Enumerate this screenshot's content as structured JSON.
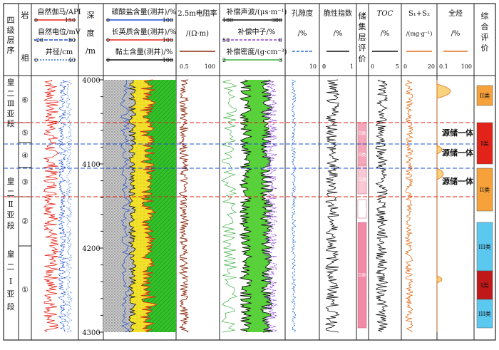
{
  "columns": {
    "stratigraphy": "四级层序",
    "lithofacies": [
      "岩",
      "相"
    ],
    "depth": [
      "深",
      "度",
      "/m"
    ],
    "resistivity": [
      "2.5m电阻率",
      "/(Ω·m)"
    ],
    "porosity": [
      "孔隙度",
      "/%"
    ],
    "brittleness": [
      "脆性指数",
      "/%"
    ],
    "reservoir_eval": "储集层评价",
    "toc": [
      "TOC",
      "/%"
    ],
    "s1s2": [
      "S₁+S₂",
      "/(mg·g⁻¹)"
    ],
    "whole_diameter": [
      "全烃",
      "/%"
    ],
    "overall_eval": "综合评价"
  },
  "curves": {
    "gr": {
      "label": "自然伽马/API",
      "min": "0",
      "max": "150",
      "color": "#e2231a"
    },
    "sp": {
      "label": "自然电位/mV",
      "min": "-20",
      "max": "80",
      "color": "#1f4fd1"
    },
    "cal": {
      "label": "井径/cm",
      "min": "0",
      "max": "40",
      "color": "#2b6fd6"
    },
    "carbonate": {
      "label": "碳酸盐含量(测井)/%",
      "min": "0",
      "max": "100",
      "color": "#1f4fd1"
    },
    "feldspar": {
      "label": "长英质含量(测井)/%",
      "min": "0",
      "max": "100",
      "color": "#e2231a"
    },
    "clay": {
      "label": "黏土含量(测井)/%",
      "min": "0",
      "max": "100",
      "color": "#111111"
    },
    "res": {
      "min": "0.5",
      "max": "100",
      "color": "#8b2a10"
    },
    "ac": {
      "label": "补偿声波/(μs·m⁻¹)",
      "min": "180",
      "max": "380",
      "color": "#111111"
    },
    "cnl": {
      "label": "补偿中子/%",
      "min": "50",
      "max": "0",
      "color": "#8b3fd6"
    },
    "den": {
      "label": "补偿密度/(g·cm⁻³)",
      "min": "2",
      "max": "3",
      "color": "#3cb043"
    },
    "por": {
      "min": "0",
      "max": "10",
      "color": "#2b6fd6"
    },
    "bri": {
      "min": "0",
      "max": "1",
      "color": "#111111"
    },
    "toc": {
      "min": "0",
      "max": "5",
      "color": "#111111"
    },
    "s1s2": {
      "min": "0",
      "max": "20",
      "color": "#e07020"
    },
    "gas": {
      "min": "0.1",
      "max": "100",
      "color": "#e07020"
    }
  },
  "depth_ticks": [
    "4000",
    "4100",
    "4200",
    "4300"
  ],
  "sequences": [
    "皇二Ⅲ亚段",
    "皇二Ⅱ亚段",
    "皇二Ⅰ亚段"
  ],
  "seq_label_iii": [
    "皇",
    "二",
    "Ⅲ",
    "亚",
    "段"
  ],
  "seq_label_ii": [
    "皇",
    "二",
    "Ⅱ",
    "亚",
    "段"
  ],
  "seq_label_i": [
    "皇",
    "二",
    "Ⅰ",
    "亚",
    "段"
  ],
  "lithofacies_units": [
    "⑥",
    "⑤",
    "④",
    "③",
    "②",
    "①"
  ],
  "reservoir_classes": [
    "II类",
    "II类",
    "I2类",
    "III类",
    "II类"
  ],
  "overall_classes": [
    "II类",
    "I类",
    "II类",
    "III类",
    "I类",
    "III类"
  ],
  "annotations": [
    "源储一体",
    "源储一体",
    "源储一体"
  ]
}
